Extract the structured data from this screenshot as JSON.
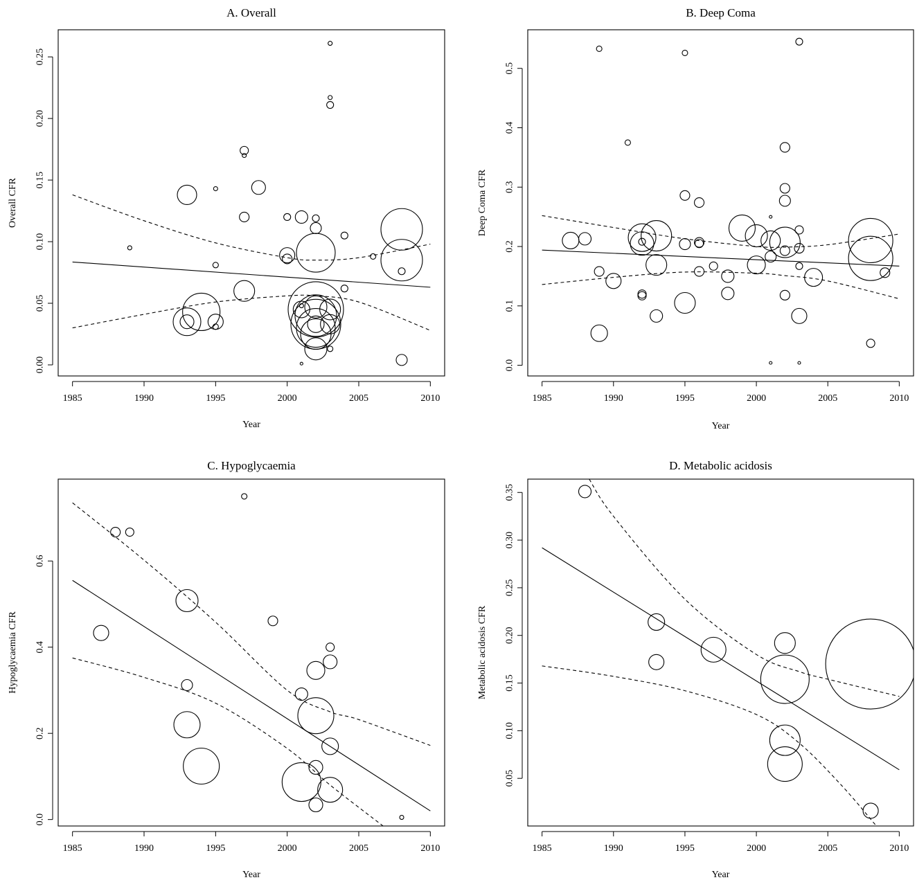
{
  "chart_data": [
    {
      "type": "scatter",
      "title": "A. Overall",
      "xlabel": "Year",
      "ylabel": "Overall CFR",
      "xlim": [
        1984,
        2011
      ],
      "ylim": [
        -0.009,
        0.272
      ],
      "xticks": [
        1985,
        1990,
        1995,
        2000,
        2005,
        2010
      ],
      "xtick_labels": [
        "1985",
        "1990",
        "1995",
        "2000",
        "2005",
        "2010"
      ],
      "yticks": [
        0,
        0.05,
        0.1,
        0.15,
        0.2,
        0.25
      ],
      "ytick_labels": [
        "0.00",
        "0.05",
        "0.10",
        "0.15",
        "0.20",
        "0.25"
      ],
      "points": [
        {
          "x": 1989,
          "y": 0.095,
          "r": 3
        },
        {
          "x": 1993,
          "y": 0.138,
          "r": 14
        },
        {
          "x": 1993,
          "y": 0.035,
          "r": 20
        },
        {
          "x": 1993,
          "y": 0.035,
          "r": 10
        },
        {
          "x": 1994,
          "y": 0.043,
          "r": 27
        },
        {
          "x": 1995,
          "y": 0.143,
          "r": 3
        },
        {
          "x": 1995,
          "y": 0.081,
          "r": 4
        },
        {
          "x": 1995,
          "y": 0.035,
          "r": 11
        },
        {
          "x": 1995,
          "y": 0.031,
          "r": 4
        },
        {
          "x": 1997,
          "y": 0.174,
          "r": 6
        },
        {
          "x": 1997,
          "y": 0.17,
          "r": 3
        },
        {
          "x": 1997,
          "y": 0.12,
          "r": 7
        },
        {
          "x": 1997,
          "y": 0.06,
          "r": 15
        },
        {
          "x": 1998,
          "y": 0.144,
          "r": 10
        },
        {
          "x": 2000,
          "y": 0.12,
          "r": 5
        },
        {
          "x": 2000,
          "y": 0.089,
          "r": 11
        },
        {
          "x": 2000,
          "y": 0.086,
          "r": 7
        },
        {
          "x": 2001,
          "y": 0.12,
          "r": 9
        },
        {
          "x": 2001,
          "y": 0.048,
          "r": 3
        },
        {
          "x": 2001,
          "y": 0.045,
          "r": 12
        },
        {
          "x": 2001,
          "y": 0.001,
          "r": 2
        },
        {
          "x": 2002,
          "y": 0.119,
          "r": 5
        },
        {
          "x": 2002,
          "y": 0.111,
          "r": 8
        },
        {
          "x": 2002,
          "y": 0.091,
          "r": 28
        },
        {
          "x": 2002,
          "y": 0.045,
          "r": 40
        },
        {
          "x": 2002,
          "y": 0.047,
          "r": 16
        },
        {
          "x": 2002,
          "y": 0.04,
          "r": 30
        },
        {
          "x": 2002,
          "y": 0.033,
          "r": 36
        },
        {
          "x": 2002,
          "y": 0.03,
          "r": 28
        },
        {
          "x": 2002,
          "y": 0.033,
          "r": 12
        },
        {
          "x": 2002,
          "y": 0.025,
          "r": 22
        },
        {
          "x": 2002,
          "y": 0.013,
          "r": 16
        },
        {
          "x": 2003,
          "y": 0.261,
          "r": 3
        },
        {
          "x": 2003,
          "y": 0.217,
          "r": 3
        },
        {
          "x": 2003,
          "y": 0.211,
          "r": 5
        },
        {
          "x": 2003,
          "y": 0.045,
          "r": 15
        },
        {
          "x": 2003,
          "y": 0.033,
          "r": 14
        },
        {
          "x": 2003,
          "y": 0.013,
          "r": 4
        },
        {
          "x": 2004,
          "y": 0.105,
          "r": 5
        },
        {
          "x": 2004,
          "y": 0.062,
          "r": 5
        },
        {
          "x": 2006,
          "y": 0.088,
          "r": 4
        },
        {
          "x": 2008,
          "y": 0.11,
          "r": 30
        },
        {
          "x": 2008,
          "y": 0.085,
          "r": 30
        },
        {
          "x": 2008,
          "y": 0.076,
          "r": 5
        },
        {
          "x": 2008,
          "y": 0.004,
          "r": 8
        }
      ],
      "fit": {
        "x": [
          1985,
          2010
        ],
        "y": [
          0.0835,
          0.063
        ]
      },
      "ci_lower": {
        "x": [
          1985,
          1990,
          1995,
          2000,
          2002,
          2005,
          2010
        ],
        "y": [
          0.03,
          0.041,
          0.051,
          0.056,
          0.056,
          0.051,
          0.028
        ]
      },
      "ci_upper": {
        "x": [
          1985,
          1990,
          1995,
          2000,
          2002,
          2005,
          2010
        ],
        "y": [
          0.138,
          0.117,
          0.099,
          0.087,
          0.085,
          0.087,
          0.098
        ]
      }
    },
    {
      "type": "scatter",
      "title": "B. Deep Coma",
      "xlabel": "Year",
      "ylabel": "Deep Coma CFR",
      "xlim": [
        1984,
        2011
      ],
      "ylim": [
        -0.018,
        0.565
      ],
      "xticks": [
        1985,
        1990,
        1995,
        2000,
        2005,
        2010
      ],
      "xtick_labels": [
        "1985",
        "1990",
        "1995",
        "2000",
        "2005",
        "2010"
      ],
      "yticks": [
        0,
        0.1,
        0.2,
        0.3,
        0.4,
        0.5
      ],
      "ytick_labels": [
        "0.0",
        "0.1",
        "0.2",
        "0.3",
        "0.4",
        "0.5"
      ],
      "points": [
        {
          "x": 1987,
          "y": 0.21,
          "r": 12
        },
        {
          "x": 1988,
          "y": 0.213,
          "r": 9
        },
        {
          "x": 1989,
          "y": 0.533,
          "r": 4
        },
        {
          "x": 1989,
          "y": 0.158,
          "r": 7
        },
        {
          "x": 1989,
          "y": 0.054,
          "r": 12
        },
        {
          "x": 1990,
          "y": 0.142,
          "r": 11
        },
        {
          "x": 1991,
          "y": 0.375,
          "r": 4
        },
        {
          "x": 1992,
          "y": 0.215,
          "r": 20
        },
        {
          "x": 1992,
          "y": 0.205,
          "r": 17
        },
        {
          "x": 1992,
          "y": 0.208,
          "r": 5
        },
        {
          "x": 1992,
          "y": 0.12,
          "r": 6
        },
        {
          "x": 1992,
          "y": 0.117,
          "r": 6
        },
        {
          "x": 1993,
          "y": 0.218,
          "r": 22
        },
        {
          "x": 1993,
          "y": 0.169,
          "r": 15
        },
        {
          "x": 1993,
          "y": 0.083,
          "r": 9
        },
        {
          "x": 1995,
          "y": 0.526,
          "r": 4
        },
        {
          "x": 1995,
          "y": 0.286,
          "r": 7
        },
        {
          "x": 1995,
          "y": 0.204,
          "r": 8
        },
        {
          "x": 1995,
          "y": 0.105,
          "r": 15
        },
        {
          "x": 1996,
          "y": 0.274,
          "r": 7
        },
        {
          "x": 1996,
          "y": 0.207,
          "r": 7
        },
        {
          "x": 1996,
          "y": 0.205,
          "r": 6
        },
        {
          "x": 1996,
          "y": 0.158,
          "r": 7
        },
        {
          "x": 1997,
          "y": 0.167,
          "r": 6
        },
        {
          "x": 1998,
          "y": 0.15,
          "r": 9
        },
        {
          "x": 1998,
          "y": 0.121,
          "r": 9
        },
        {
          "x": 1999,
          "y": 0.231,
          "r": 19
        },
        {
          "x": 2000,
          "y": 0.218,
          "r": 16
        },
        {
          "x": 2000,
          "y": 0.169,
          "r": 13
        },
        {
          "x": 2001,
          "y": 0.25,
          "r": 2
        },
        {
          "x": 2001,
          "y": 0.21,
          "r": 14
        },
        {
          "x": 2001,
          "y": 0.183,
          "r": 8
        },
        {
          "x": 2001,
          "y": 0.004,
          "r": 2
        },
        {
          "x": 2002,
          "y": 0.367,
          "r": 7
        },
        {
          "x": 2002,
          "y": 0.298,
          "r": 7
        },
        {
          "x": 2002,
          "y": 0.277,
          "r": 8
        },
        {
          "x": 2002,
          "y": 0.207,
          "r": 22
        },
        {
          "x": 2002,
          "y": 0.193,
          "r": 7
        },
        {
          "x": 2002,
          "y": 0.118,
          "r": 7
        },
        {
          "x": 2003,
          "y": 0.545,
          "r": 5
        },
        {
          "x": 2003,
          "y": 0.228,
          "r": 6
        },
        {
          "x": 2003,
          "y": 0.197,
          "r": 7
        },
        {
          "x": 2003,
          "y": 0.167,
          "r": 5
        },
        {
          "x": 2003,
          "y": 0.083,
          "r": 11
        },
        {
          "x": 2003,
          "y": 0.004,
          "r": 2
        },
        {
          "x": 2004,
          "y": 0.148,
          "r": 13
        },
        {
          "x": 2008,
          "y": 0.21,
          "r": 32
        },
        {
          "x": 2008,
          "y": 0.18,
          "r": 32
        },
        {
          "x": 2008,
          "y": 0.037,
          "r": 6
        },
        {
          "x": 2009,
          "y": 0.156,
          "r": 7
        }
      ],
      "fit": {
        "x": [
          1985,
          2010
        ],
        "y": [
          0.194,
          0.167
        ]
      },
      "ci_lower": {
        "x": [
          1985,
          1990,
          1995,
          2000,
          2002,
          2005,
          2010
        ],
        "y": [
          0.136,
          0.148,
          0.157,
          0.155,
          0.151,
          0.142,
          0.112
        ]
      },
      "ci_upper": {
        "x": [
          1985,
          1990,
          1995,
          2000,
          2002,
          2005,
          2010
        ],
        "y": [
          0.252,
          0.232,
          0.213,
          0.2,
          0.199,
          0.203,
          0.221
        ]
      }
    },
    {
      "type": "scatter",
      "title": "C. Hypoglycaemia",
      "xlabel": "Year",
      "ylabel": "Hypoglycaemia CFR",
      "xlim": [
        1984,
        2011
      ],
      "ylim": [
        -0.015,
        0.79
      ],
      "xticks": [
        1985,
        1990,
        1995,
        2000,
        2005,
        2010
      ],
      "xtick_labels": [
        "1985",
        "1990",
        "1995",
        "2000",
        "2005",
        "2010"
      ],
      "yticks": [
        0,
        0.2,
        0.4,
        0.6
      ],
      "ytick_labels": [
        "0.0",
        "0.2",
        "0.4",
        "0.6"
      ],
      "points": [
        {
          "x": 1987,
          "y": 0.433,
          "r": 11
        },
        {
          "x": 1988,
          "y": 0.667,
          "r": 7
        },
        {
          "x": 1989,
          "y": 0.667,
          "r": 6
        },
        {
          "x": 1993,
          "y": 0.508,
          "r": 16
        },
        {
          "x": 1993,
          "y": 0.312,
          "r": 8
        },
        {
          "x": 1993,
          "y": 0.22,
          "r": 19
        },
        {
          "x": 1994,
          "y": 0.124,
          "r": 26
        },
        {
          "x": 1997,
          "y": 0.75,
          "r": 4
        },
        {
          "x": 1999,
          "y": 0.461,
          "r": 7
        },
        {
          "x": 2001,
          "y": 0.291,
          "r": 9
        },
        {
          "x": 2001,
          "y": 0.087,
          "r": 28
        },
        {
          "x": 2002,
          "y": 0.346,
          "r": 13
        },
        {
          "x": 2002,
          "y": 0.241,
          "r": 26
        },
        {
          "x": 2002,
          "y": 0.121,
          "r": 10
        },
        {
          "x": 2002,
          "y": 0.034,
          "r": 10
        },
        {
          "x": 2003,
          "y": 0.4,
          "r": 6
        },
        {
          "x": 2003,
          "y": 0.366,
          "r": 10
        },
        {
          "x": 2003,
          "y": 0.17,
          "r": 12
        },
        {
          "x": 2003,
          "y": 0.069,
          "r": 18
        },
        {
          "x": 2008,
          "y": 0.005,
          "r": 3
        }
      ],
      "fit": {
        "x": [
          1985,
          2010
        ],
        "y": [
          0.555,
          0.02
        ]
      },
      "ci_lower": {
        "x": [
          1985,
          1990,
          1995,
          2000,
          2003,
          2006.7
        ],
        "y": [
          0.375,
          0.33,
          0.27,
          0.165,
          0.08,
          -0.015
        ]
      },
      "ci_upper": {
        "x": [
          1985,
          1990,
          1995,
          2000,
          2003,
          2005,
          2010
        ],
        "y": [
          0.735,
          0.602,
          0.458,
          0.3,
          0.25,
          0.232,
          0.172
        ]
      }
    },
    {
      "type": "scatter",
      "title": "D. Metabolic acidosis",
      "xlabel": "Year",
      "ylabel": "Metabolic acidosis CFR",
      "xlim": [
        1984,
        2011
      ],
      "ylim": [
        0.0,
        0.364
      ],
      "xticks": [
        1985,
        1990,
        1995,
        2000,
        2005,
        2010
      ],
      "xtick_labels": [
        "1985",
        "1990",
        "1995",
        "2000",
        "2005",
        "2010"
      ],
      "yticks": [
        0.05,
        0.1,
        0.15,
        0.2,
        0.25,
        0.3,
        0.35
      ],
      "ytick_labels": [
        "0.05",
        "0.10",
        "0.15",
        "0.20",
        "0.25",
        "0.30",
        "0.35"
      ],
      "points": [
        {
          "x": 1988,
          "y": 0.351,
          "r": 9
        },
        {
          "x": 1993,
          "y": 0.214,
          "r": 12
        },
        {
          "x": 1993,
          "y": 0.172,
          "r": 11
        },
        {
          "x": 1997,
          "y": 0.185,
          "r": 18
        },
        {
          "x": 2002,
          "y": 0.192,
          "r": 15
        },
        {
          "x": 2002,
          "y": 0.154,
          "r": 35
        },
        {
          "x": 2002,
          "y": 0.09,
          "r": 22
        },
        {
          "x": 2002,
          "y": 0.065,
          "r": 25
        },
        {
          "x": 2008,
          "y": 0.17,
          "r": 65
        },
        {
          "x": 2008,
          "y": 0.016,
          "r": 11
        }
      ],
      "fit": {
        "x": [
          1985,
          2010
        ],
        "y": [
          0.292,
          0.059
        ]
      },
      "ci_lower": {
        "x": [
          1985,
          1990,
          1995,
          2000,
          2003,
          2006,
          2008.4
        ],
        "y": [
          0.168,
          0.157,
          0.142,
          0.117,
          0.087,
          0.042,
          0.0
        ]
      },
      "ci_upper": {
        "x": [
          1988.3,
          1990,
          1995,
          2000,
          2003,
          2005,
          2010
        ],
        "y": [
          0.364,
          0.325,
          0.238,
          0.18,
          0.162,
          0.154,
          0.136
        ]
      }
    }
  ]
}
